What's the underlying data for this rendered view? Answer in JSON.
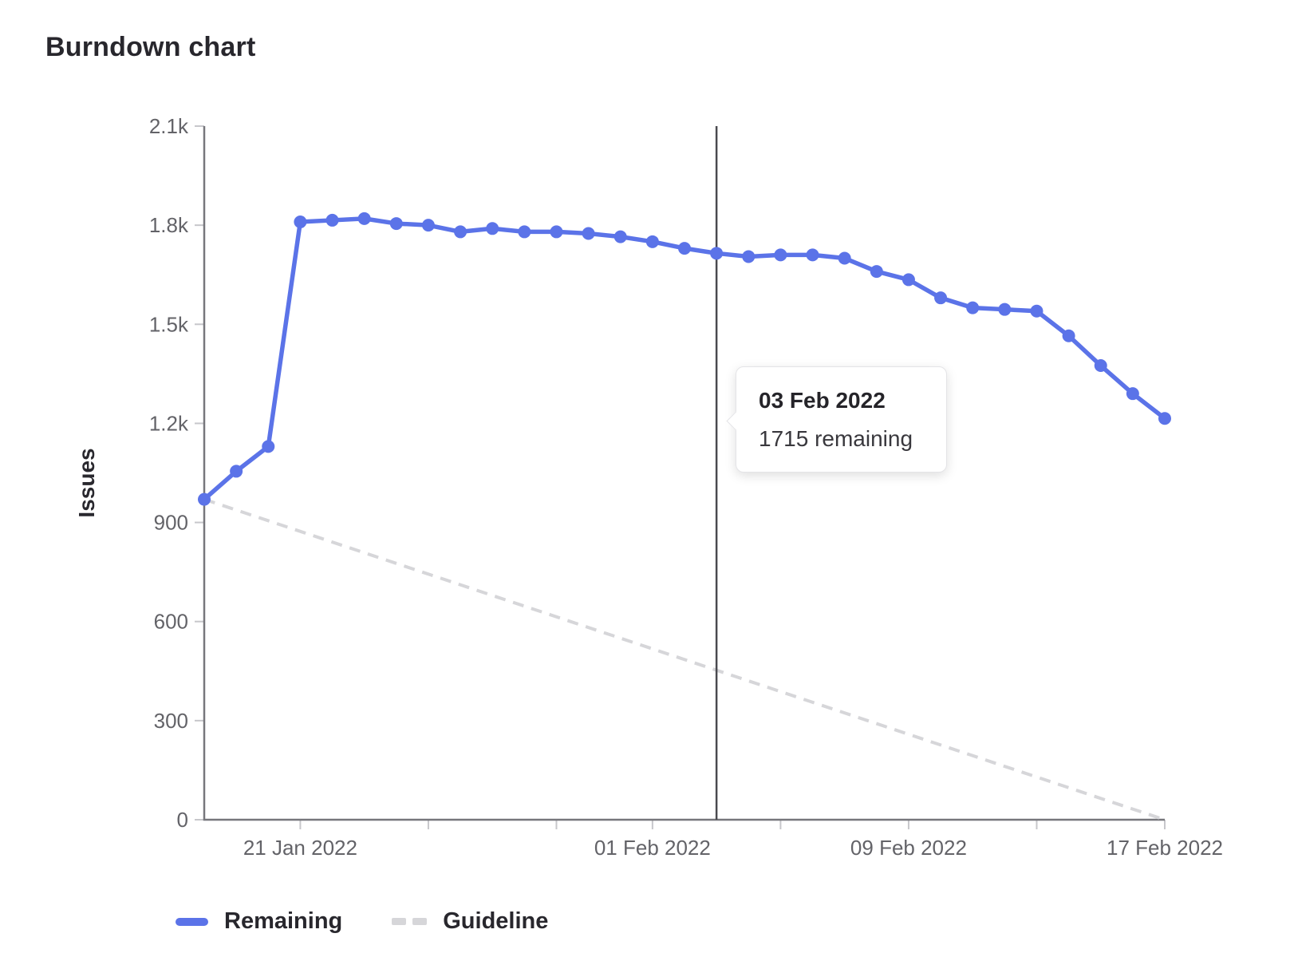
{
  "chart_data": {
    "type": "line",
    "title": "Burndown chart",
    "xlabel": "",
    "ylabel": "Issues",
    "ylim": [
      0,
      2100
    ],
    "grid": false,
    "legend_position": "bottom",
    "y_ticks": [
      {
        "value": 0,
        "label": "0"
      },
      {
        "value": 300,
        "label": "300"
      },
      {
        "value": 600,
        "label": "600"
      },
      {
        "value": 900,
        "label": "900"
      },
      {
        "value": 1200,
        "label": "1.2k"
      },
      {
        "value": 1500,
        "label": "1.5k"
      },
      {
        "value": 1800,
        "label": "1.8k"
      },
      {
        "value": 2100,
        "label": "2.1k"
      }
    ],
    "x_range_days": 30,
    "x_ticks": [
      {
        "day": 3,
        "label": "21 Jan 2022"
      },
      {
        "day": 7,
        "label": ""
      },
      {
        "day": 11,
        "label": ""
      },
      {
        "day": 14,
        "label": "01 Feb 2022"
      },
      {
        "day": 18,
        "label": ""
      },
      {
        "day": 22,
        "label": "09 Feb 2022"
      },
      {
        "day": 26,
        "label": ""
      },
      {
        "day": 30,
        "label": "17 Feb 2022"
      }
    ],
    "dates": [
      "18 Jan 2022",
      "19 Jan 2022",
      "20 Jan 2022",
      "21 Jan 2022",
      "22 Jan 2022",
      "23 Jan 2022",
      "24 Jan 2022",
      "25 Jan 2022",
      "26 Jan 2022",
      "27 Jan 2022",
      "28 Jan 2022",
      "29 Jan 2022",
      "30 Jan 2022",
      "31 Jan 2022",
      "01 Feb 2022",
      "02 Feb 2022",
      "03 Feb 2022",
      "04 Feb 2022",
      "05 Feb 2022",
      "06 Feb 2022",
      "07 Feb 2022",
      "08 Feb 2022",
      "09 Feb 2022",
      "10 Feb 2022",
      "11 Feb 2022",
      "12 Feb 2022",
      "13 Feb 2022",
      "14 Feb 2022",
      "15 Feb 2022",
      "16 Feb 2022",
      "17 Feb 2022"
    ],
    "series": [
      {
        "name": "Remaining",
        "color": "#5b73e8",
        "dash": false,
        "show_points": true,
        "values": [
          970,
          1055,
          1130,
          1810,
          1815,
          1820,
          1805,
          1800,
          1780,
          1790,
          1780,
          1780,
          1775,
          1765,
          1750,
          1730,
          1715,
          1705,
          1710,
          1710,
          1700,
          1660,
          1635,
          1580,
          1550,
          1545,
          1540,
          1465,
          1375,
          1290,
          1215
        ]
      },
      {
        "name": "Guideline",
        "color": "#d6d6d9",
        "dash": true,
        "show_points": false,
        "points_by_day": [
          {
            "day": 0,
            "value": 970
          },
          {
            "day": 30,
            "value": 0
          }
        ]
      }
    ],
    "today_marker": {
      "day": 16,
      "date": "03 Feb 2022",
      "color": "#4a4a4f"
    },
    "tooltip": {
      "title": "03 Feb 2022",
      "body": "1715 remaining",
      "day": 16,
      "value": 1715
    }
  }
}
